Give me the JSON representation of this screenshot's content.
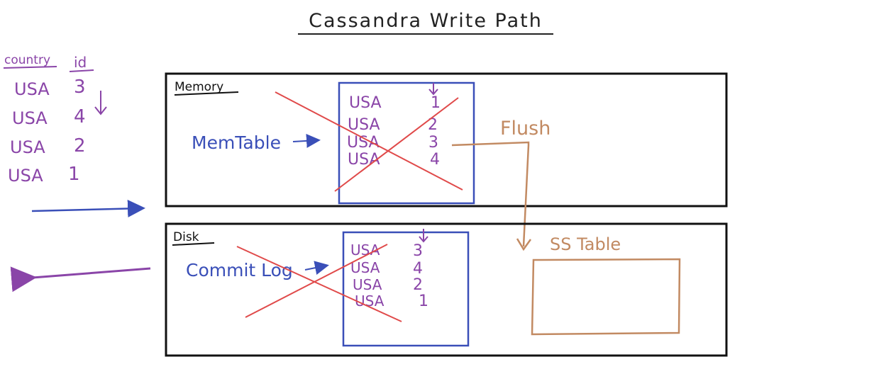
{
  "title": "Cassandra Write Path",
  "colors": {
    "ink": "#111111",
    "purple": "#8a45a8",
    "blue": "#3a4fb8",
    "brown": "#c28a62",
    "red": "#e04a4a"
  },
  "incoming": {
    "headers": {
      "country": "country",
      "id": "id"
    },
    "rows": [
      {
        "country": "USA",
        "id": "3"
      },
      {
        "country": "USA",
        "id": "4"
      },
      {
        "country": "USA",
        "id": "2"
      },
      {
        "country": "USA",
        "id": "1"
      }
    ]
  },
  "memory": {
    "label": "Memory",
    "memtable_label": "MemTable",
    "rows": [
      {
        "country": "USA",
        "id": "1"
      },
      {
        "country": "USA",
        "id": "2"
      },
      {
        "country": "USA",
        "id": "3"
      },
      {
        "country": "USA",
        "id": "4"
      }
    ]
  },
  "disk": {
    "label": "Disk",
    "commitlog_label": "Commit Log",
    "rows": [
      {
        "country": "USA",
        "id": "3"
      },
      {
        "country": "USA",
        "id": "4"
      },
      {
        "country": "USA",
        "id": "2"
      },
      {
        "country": "USA",
        "id": "1"
      }
    ]
  },
  "flush_label": "Flush",
  "sstable_label": "SS Table"
}
